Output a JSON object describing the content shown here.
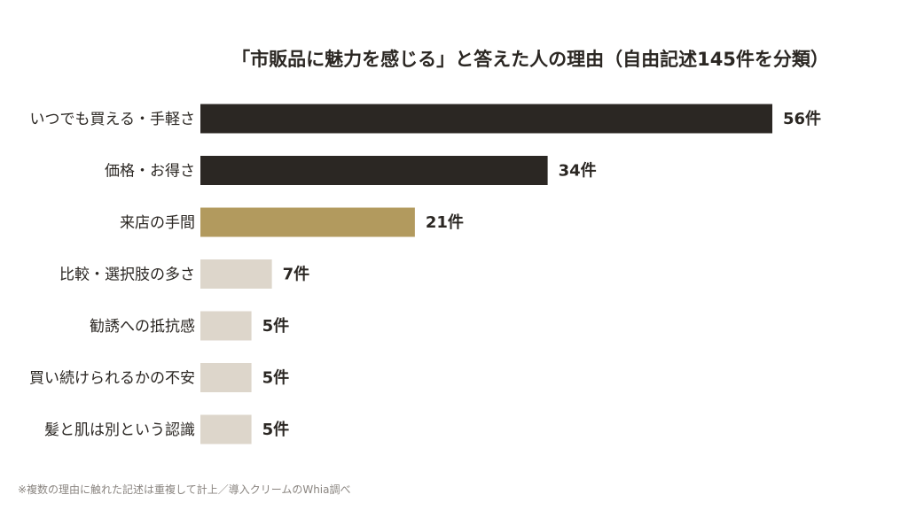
{
  "chart_data": {
    "type": "bar",
    "orientation": "horizontal",
    "title": "「市販品に魅力を感じる」と答えた人の理由（自由記述145件を分類）",
    "categories": [
      "いつでも買える・手軽さ",
      "価格・お得さ",
      "来店の手間",
      "比較・選択肢の多さ",
      "勧誘への抵抗感",
      "買い続けられるかの不安",
      "髪と肌は別という認識"
    ],
    "values": [
      56,
      34,
      21,
      7,
      5,
      5,
      5
    ],
    "value_labels": [
      "56件",
      "34件",
      "21件",
      "7件",
      "5件",
      "5件",
      "5件"
    ],
    "bar_colors": [
      "#2b2723",
      "#2b2723",
      "#b29a5e",
      "#ddd6cb",
      "#ddd6cb",
      "#ddd6cb",
      "#ddd6cb"
    ],
    "xlim": [
      0,
      56
    ],
    "grid": false,
    "legend": "none"
  },
  "footnote": "※複数の理由に触れた記述は重複して計上／導入クリームのWhia調べ",
  "colors": {
    "text": "#2b2723",
    "footnote": "#8a8580",
    "background": "#ffffff"
  }
}
